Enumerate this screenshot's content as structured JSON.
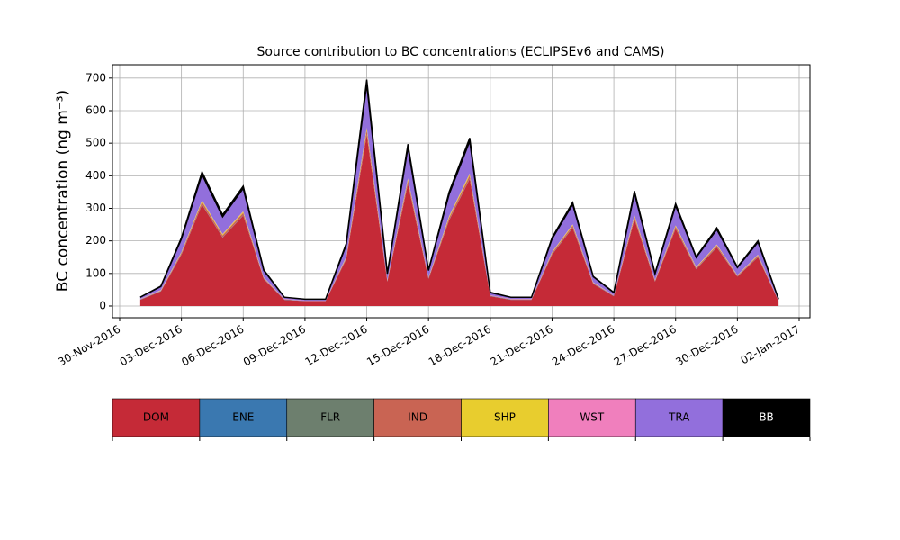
{
  "chart_data": {
    "type": "stacked_area",
    "title": "Source contribution to BC concentrations (ECLIPSEv6 and CAMS)",
    "y_label": "BC concentration (ng m⁻³)",
    "x": [
      "2016-12-01",
      "2016-12-02",
      "2016-12-03",
      "2016-12-04",
      "2016-12-05",
      "2016-12-06",
      "2016-12-07",
      "2016-12-08",
      "2016-12-09",
      "2016-12-10",
      "2016-12-11",
      "2016-12-12",
      "2016-12-13",
      "2016-12-14",
      "2016-12-15",
      "2016-12-16",
      "2016-12-17",
      "2016-12-18",
      "2016-12-19",
      "2016-12-20",
      "2016-12-21",
      "2016-12-22",
      "2016-12-23",
      "2016-12-24",
      "2016-12-25",
      "2016-12-26",
      "2016-12-27",
      "2016-12-28",
      "2016-12-29",
      "2016-12-30",
      "2016-12-31",
      "2017-01-01"
    ],
    "series": [
      {
        "name": "DOM",
        "color": "#c52a37",
        "values": [
          19,
          45,
          158,
          311,
          210,
          278,
          83,
          19,
          15,
          15,
          143,
          525,
          75,
          375,
          83,
          263,
          390,
          30,
          19,
          19,
          158,
          240,
          68,
          30,
          266,
          75,
          237,
          113,
          180,
          90,
          150,
          15
        ]
      },
      {
        "name": "ENE",
        "color": "#3a78b0",
        "values": [
          1,
          1,
          1,
          1,
          1,
          1,
          1,
          1,
          1,
          1,
          1,
          1,
          1,
          1,
          1,
          1,
          1,
          1,
          1,
          1,
          1,
          1,
          1,
          1,
          1,
          1,
          1,
          1,
          1,
          1,
          1,
          1
        ]
      },
      {
        "name": "FLR",
        "color": "#6d7f6e",
        "values": [
          0,
          0,
          0,
          0,
          0,
          0,
          0,
          0,
          0,
          0,
          0,
          0,
          0,
          0,
          0,
          0,
          0,
          0,
          0,
          0,
          0,
          0,
          0,
          0,
          0,
          0,
          0,
          0,
          0,
          0,
          0,
          0
        ]
      },
      {
        "name": "IND",
        "color": "#c96453",
        "values": [
          1,
          1,
          4,
          8,
          6,
          7,
          2,
          1,
          0,
          0,
          4,
          14,
          2,
          10,
          2,
          7,
          10,
          1,
          1,
          1,
          4,
          6,
          2,
          1,
          7,
          2,
          6,
          3,
          5,
          2,
          4,
          0
        ]
      },
      {
        "name": "SHP",
        "color": "#e8cd2e",
        "values": [
          0,
          1,
          2,
          4,
          3,
          4,
          1,
          0,
          0,
          0,
          2,
          7,
          1,
          5,
          1,
          4,
          5,
          0,
          0,
          0,
          2,
          3,
          1,
          0,
          4,
          1,
          3,
          2,
          2,
          1,
          2,
          0
        ]
      },
      {
        "name": "WST",
        "color": "#f07fbd",
        "values": [
          1,
          1,
          1,
          1,
          1,
          1,
          1,
          1,
          1,
          1,
          1,
          1,
          1,
          1,
          1,
          1,
          1,
          1,
          1,
          1,
          1,
          1,
          1,
          1,
          1,
          1,
          1,
          1,
          1,
          1,
          1,
          1
        ]
      },
      {
        "name": "TRA",
        "color": "#926fdc",
        "values": [
          5,
          11,
          40,
          79,
          53,
          70,
          21,
          5,
          4,
          4,
          36,
          133,
          19,
          95,
          21,
          67,
          99,
          8,
          5,
          5,
          40,
          61,
          17,
          8,
          67,
          19,
          60,
          29,
          46,
          23,
          38,
          4
        ]
      },
      {
        "name": "BB",
        "color": "#000000",
        "values": [
          0,
          1,
          4,
          8,
          6,
          7,
          2,
          0,
          0,
          0,
          4,
          14,
          2,
          10,
          2,
          7,
          10,
          1,
          0,
          0,
          4,
          6,
          1,
          1,
          7,
          2,
          6,
          2,
          5,
          2,
          4,
          0
        ]
      }
    ],
    "xlim": [
      "2016-11-30",
      "2017-01-02"
    ],
    "xticks": [
      {
        "value": "2016-11-30",
        "label": "30-Nov-2016"
      },
      {
        "value": "2016-12-03",
        "label": "03-Dec-2016"
      },
      {
        "value": "2016-12-06",
        "label": "06-Dec-2016"
      },
      {
        "value": "2016-12-09",
        "label": "09-Dec-2016"
      },
      {
        "value": "2016-12-12",
        "label": "12-Dec-2016"
      },
      {
        "value": "2016-12-15",
        "label": "15-Dec-2016"
      },
      {
        "value": "2016-12-18",
        "label": "18-Dec-2016"
      },
      {
        "value": "2016-12-21",
        "label": "21-Dec-2016"
      },
      {
        "value": "2016-12-24",
        "label": "24-Dec-2016"
      },
      {
        "value": "2016-12-27",
        "label": "27-Dec-2016"
      },
      {
        "value": "2016-12-30",
        "label": "30-Dec-2016"
      },
      {
        "value": "2017-01-02",
        "label": "02-Jan-2017"
      }
    ],
    "ylim": [
      -36,
      741
    ],
    "yticks": [
      0,
      100,
      200,
      300,
      400,
      500,
      600,
      700
    ],
    "grid": true
  }
}
